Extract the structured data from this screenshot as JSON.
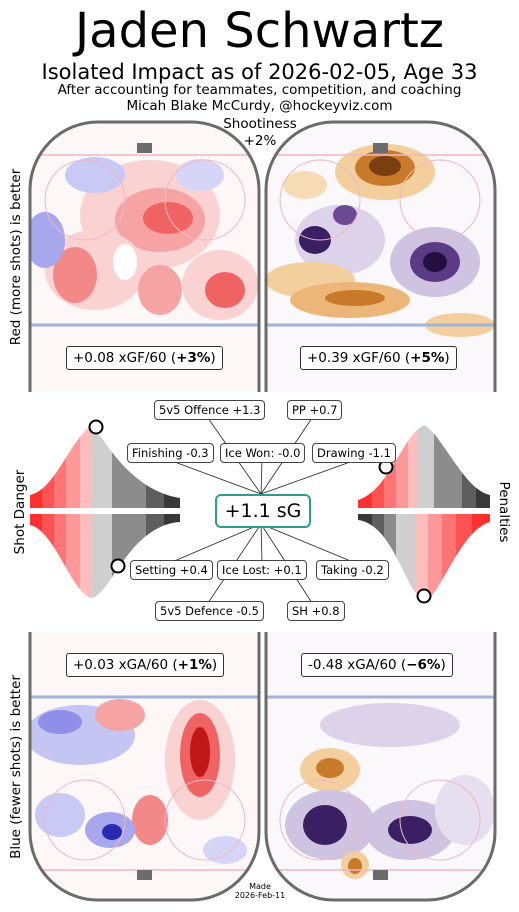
{
  "header": {
    "title": "Jaden Schwartz",
    "subtitle": "Isolated Impact as of 2026-02-05, Age 33",
    "note": "After accounting for teammates, competition, and coaching",
    "author": "Micah Blake McCurdy, @hockeyviz.com",
    "shootiness_label": "Shootiness",
    "shootiness_value": "+2%"
  },
  "side_labels": {
    "top_left": "Red (more shots) is better",
    "middle_left": "Shot Danger",
    "middle_right": "Penalties",
    "bottom_left": "Blue (fewer shots) is better"
  },
  "colors": {
    "rink_border": "#6b6b6b",
    "red_fill": "#f04040",
    "blue_fill": "#4a4ad6",
    "orange_fill": "#c87a2a",
    "purple_fill": "#3a1f63",
    "sg_border": "#2a9d8f"
  },
  "chart_data": [
    {
      "type": "heatmap",
      "name": "offence-even",
      "label_value": "+0.08 xGF/60 (",
      "label_pct": "+3%",
      "label_close": ")"
    },
    {
      "type": "heatmap",
      "name": "offence-pp",
      "label_value": "+0.39 xGF/60 (",
      "label_pct": "+5%",
      "label_close": ")"
    },
    {
      "type": "heatmap",
      "name": "defence-even",
      "label_value": "+0.03 xGA/60 (",
      "label_pct": "+1%",
      "label_close": ")"
    },
    {
      "type": "heatmap",
      "name": "defence-pk",
      "label_value": "-0.48 xGA/60 (",
      "label_pct": "−6%",
      "label_close": ")"
    }
  ],
  "components": {
    "total": "+1.1 sG",
    "top": [
      {
        "label": "5v5 Offence +1.3"
      },
      {
        "label": "PP +0.7"
      },
      {
        "label": "Finishing -0.3"
      },
      {
        "label": "Ice Won: -0.0"
      },
      {
        "label": "Drawing -1.1"
      }
    ],
    "bottom": [
      {
        "label": "Setting +0.4"
      },
      {
        "label": "Ice Lost: +0.1"
      },
      {
        "label": "Taking -0.2"
      },
      {
        "label": "5v5 Defence -0.5"
      },
      {
        "label": "SH +0.8"
      }
    ]
  },
  "footer": {
    "made": "Made",
    "date": "2026-Feb-11"
  }
}
